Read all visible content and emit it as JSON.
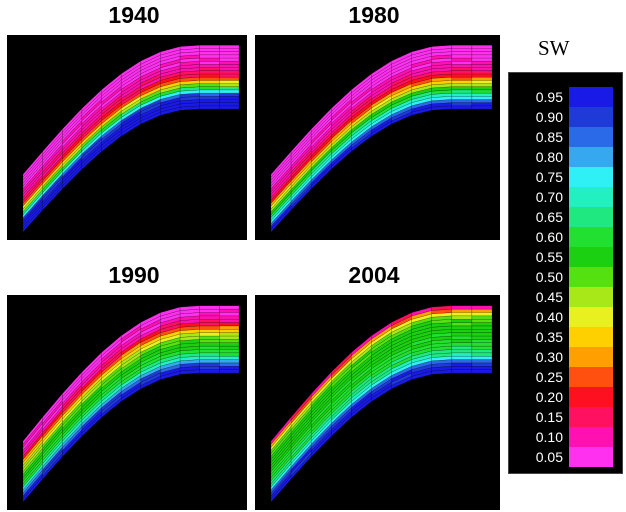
{
  "panels": [
    {
      "year": "1940",
      "sat": [
        0.95,
        0.95,
        0.95,
        0.92,
        0.88,
        0.75,
        0.62,
        0.48,
        0.36,
        0.25,
        0.18,
        0.14,
        0.12,
        0.1,
        0.08,
        0.07,
        0.06,
        0.05,
        0.05,
        0.05
      ]
    },
    {
      "year": "1980",
      "sat": [
        0.95,
        0.93,
        0.85,
        0.75,
        0.7,
        0.62,
        0.55,
        0.45,
        0.36,
        0.28,
        0.2,
        0.15,
        0.12,
        0.1,
        0.08,
        0.07,
        0.06,
        0.05,
        0.05,
        0.05
      ]
    },
    {
      "year": "1990",
      "sat": [
        0.95,
        0.93,
        0.88,
        0.8,
        0.7,
        0.64,
        0.6,
        0.57,
        0.55,
        0.52,
        0.48,
        0.42,
        0.35,
        0.26,
        0.18,
        0.12,
        0.09,
        0.07,
        0.06,
        0.05
      ]
    },
    {
      "year": "2004",
      "sat": [
        0.95,
        0.94,
        0.92,
        0.85,
        0.75,
        0.68,
        0.64,
        0.62,
        0.6,
        0.58,
        0.57,
        0.56,
        0.55,
        0.55,
        0.54,
        0.52,
        0.48,
        0.4,
        0.28,
        0.12
      ]
    }
  ],
  "legend": {
    "title": "SW",
    "labels": [
      "0.95",
      "0.90",
      "0.85",
      "0.80",
      "0.75",
      "0.70",
      "0.65",
      "0.60",
      "0.55",
      "0.50",
      "0.45",
      "0.40",
      "0.35",
      "0.30",
      "0.25",
      "0.20",
      "0.15",
      "0.10",
      "0.05"
    ],
    "colors": [
      "#1a1ae6",
      "#1f3ad6",
      "#2a6ae8",
      "#35a8f0",
      "#2ef0f5",
      "#22f0c0",
      "#20e880",
      "#22e030",
      "#1ad010",
      "#55e010",
      "#a8e818",
      "#e8f020",
      "#ffd000",
      "#ffa000",
      "#ff5010",
      "#ff1020",
      "#ff1060",
      "#ff10b0",
      "#ff30f0"
    ]
  }
}
